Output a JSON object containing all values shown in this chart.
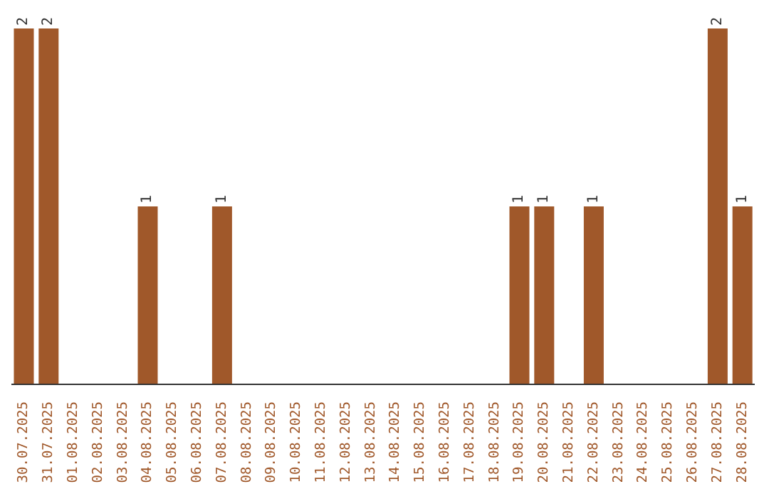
{
  "chart_data": {
    "type": "bar",
    "categories": [
      "30.07.2025",
      "31.07.2025",
      "01.08.2025",
      "02.08.2025",
      "03.08.2025",
      "04.08.2025",
      "05.08.2025",
      "06.08.2025",
      "07.08.2025",
      "08.08.2025",
      "09.08.2025",
      "10.08.2025",
      "11.08.2025",
      "12.08.2025",
      "13.08.2025",
      "14.08.2025",
      "15.08.2025",
      "16.08.2025",
      "17.08.2025",
      "18.08.2025",
      "19.08.2025",
      "20.08.2025",
      "21.08.2025",
      "22.08.2025",
      "23.08.2025",
      "24.08.2025",
      "25.08.2025",
      "26.08.2025",
      "27.08.2025",
      "28.08.2025"
    ],
    "values": [
      2,
      2,
      0,
      0,
      0,
      1,
      0,
      0,
      1,
      0,
      0,
      0,
      0,
      0,
      0,
      0,
      0,
      0,
      0,
      0,
      1,
      1,
      0,
      1,
      0,
      0,
      0,
      0,
      2,
      1
    ],
    "value_labels": [
      "2",
      "2",
      null,
      null,
      null,
      "1",
      null,
      null,
      "1",
      null,
      null,
      null,
      null,
      null,
      null,
      null,
      null,
      null,
      null,
      null,
      "1",
      "1",
      null,
      "1",
      null,
      null,
      null,
      null,
      "2",
      "1"
    ],
    "color": "#a0582a",
    "grid": false,
    "legend": false
  }
}
